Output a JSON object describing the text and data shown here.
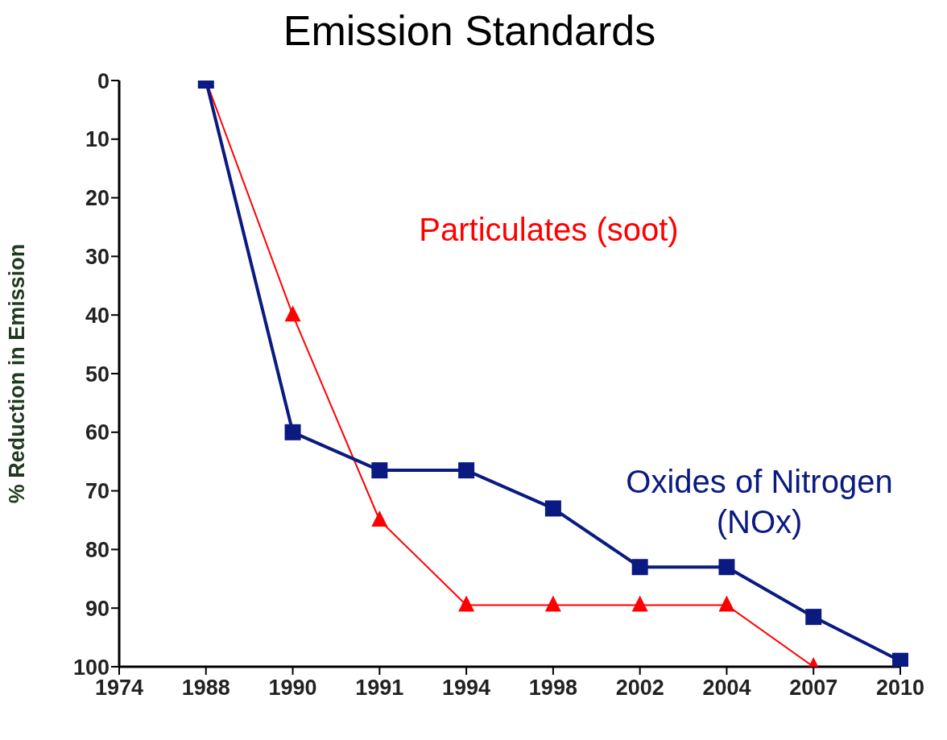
{
  "chart_data": {
    "type": "line",
    "title": "Emission Standards",
    "ylabel": "% Reduction in Emission",
    "categories": [
      "1974",
      "1988",
      "1990",
      "1991",
      "1994",
      "1998",
      "2002",
      "2004",
      "2007",
      "2010"
    ],
    "series": [
      {
        "name": "Particulates (soot)",
        "color": "#ff0000",
        "marker": "triangle",
        "values": [
          null,
          0,
          40,
          75,
          89.5,
          89.5,
          89.5,
          89.5,
          100,
          null
        ]
      },
      {
        "name": "Oxides of Nitrogen (NOx)",
        "color": "#0a1a80",
        "marker": "square",
        "values": [
          null,
          0,
          60,
          66.5,
          66.5,
          73,
          83,
          83,
          91.5,
          99
        ]
      }
    ],
    "ylim": [
      100,
      0
    ],
    "yticks": [
      0,
      10,
      20,
      30,
      40,
      50,
      60,
      70,
      80,
      90,
      100
    ],
    "grid": false,
    "legend": false
  }
}
